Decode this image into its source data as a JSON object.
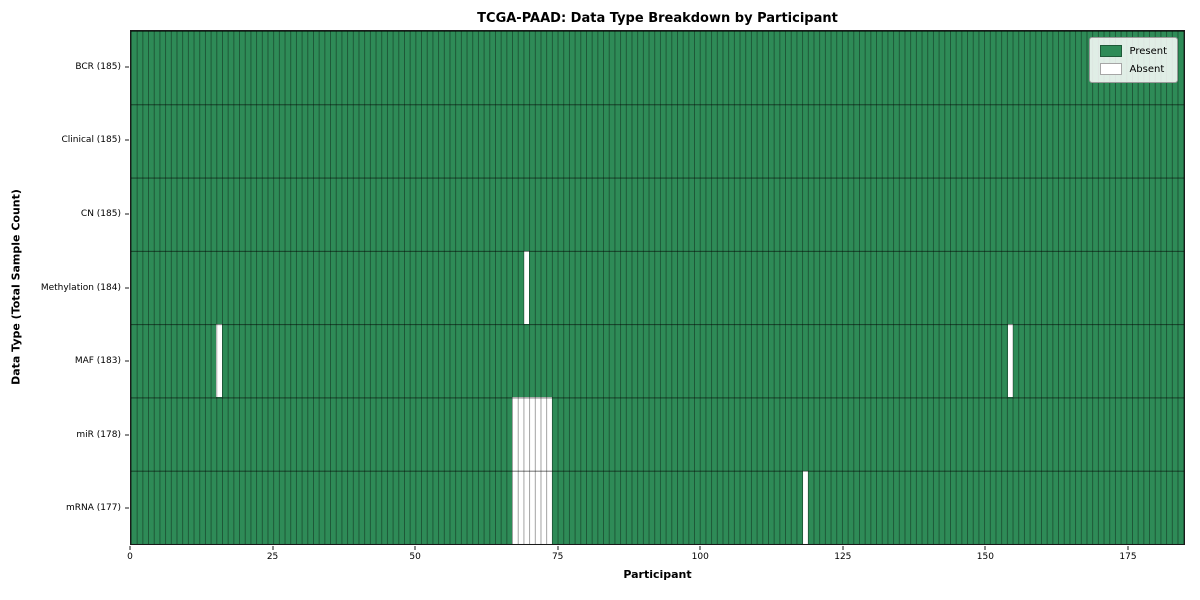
{
  "chart_data": {
    "type": "heatmap",
    "title": "TCGA-PAAD: Data Type Breakdown by Participant",
    "xlabel": "Participant",
    "ylabel": "Data Type (Total Sample Count)",
    "n_participants": 185,
    "axis": {
      "x_min": 0,
      "x_max": 185
    },
    "x_ticks": [
      0,
      25,
      50,
      75,
      100,
      125,
      150,
      175
    ],
    "rows": [
      {
        "label": "BCR (185)",
        "total": 185,
        "absent_participants": []
      },
      {
        "label": "Clinical (185)",
        "total": 185,
        "absent_participants": []
      },
      {
        "label": "CN (185)",
        "total": 185,
        "absent_participants": []
      },
      {
        "label": "Methylation (184)",
        "total": 184,
        "absent_participants": [
          69
        ]
      },
      {
        "label": "MAF (183)",
        "total": 183,
        "absent_participants": [
          15,
          154
        ]
      },
      {
        "label": "miR (178)",
        "total": 178,
        "absent_participants": [
          67,
          68,
          69,
          70,
          71,
          72,
          73
        ]
      },
      {
        "label": "mRNA (177)",
        "total": 177,
        "absent_participants": [
          67,
          68,
          69,
          70,
          71,
          72,
          73,
          118
        ]
      }
    ],
    "legend": [
      {
        "label": "Present",
        "color": "#2e8b57"
      },
      {
        "label": "Absent",
        "color": "#ffffff"
      }
    ],
    "colors": {
      "present": "#2e8b57",
      "absent": "#ffffff"
    },
    "legend_position": "upper right",
    "grid": true
  }
}
